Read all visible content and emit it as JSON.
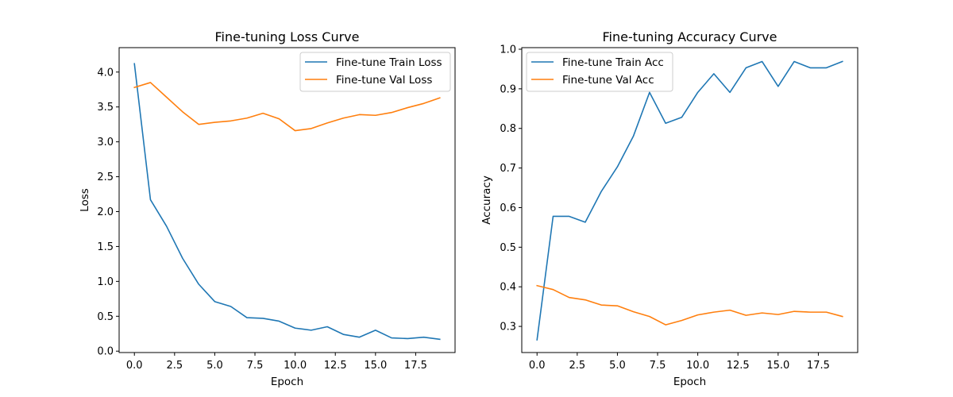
{
  "chart_data": [
    {
      "type": "line",
      "title": "Fine-tuning Loss Curve",
      "xlabel": "Epoch",
      "ylabel": "Loss",
      "x": [
        0,
        1,
        2,
        3,
        4,
        5,
        6,
        7,
        8,
        9,
        10,
        11,
        12,
        13,
        14,
        15,
        16,
        17,
        18,
        19
      ],
      "xlim": [
        -0.95,
        19.95
      ],
      "ylim": [
        -0.02,
        4.35
      ],
      "xticks": [
        0.0,
        2.5,
        5.0,
        7.5,
        10.0,
        12.5,
        15.0,
        17.5
      ],
      "xtick_labels": [
        "0.0",
        "2.5",
        "5.0",
        "7.5",
        "10.0",
        "12.5",
        "15.0",
        "17.5"
      ],
      "yticks": [
        0.0,
        0.5,
        1.0,
        1.5,
        2.0,
        2.5,
        3.0,
        3.5,
        4.0
      ],
      "ytick_labels": [
        "0.0",
        "0.5",
        "1.0",
        "1.5",
        "2.0",
        "2.5",
        "3.0",
        "3.5",
        "4.0"
      ],
      "legend_position": "upper-right",
      "series": [
        {
          "name": "Fine-tune Train Loss",
          "color": "#1f77b4",
          "values": [
            4.12,
            2.17,
            1.79,
            1.33,
            0.96,
            0.71,
            0.64,
            0.48,
            0.47,
            0.43,
            0.33,
            0.3,
            0.35,
            0.24,
            0.2,
            0.3,
            0.19,
            0.18,
            0.2,
            0.17
          ]
        },
        {
          "name": "Fine-tune Val Loss",
          "color": "#ff7f0e",
          "values": [
            3.78,
            3.85,
            3.64,
            3.43,
            3.25,
            3.28,
            3.3,
            3.34,
            3.41,
            3.33,
            3.16,
            3.19,
            3.27,
            3.34,
            3.39,
            3.38,
            3.42,
            3.49,
            3.55,
            3.63
          ]
        }
      ]
    },
    {
      "type": "line",
      "title": "Fine-tuning Accuracy Curve",
      "xlabel": "Epoch",
      "ylabel": "Accuracy",
      "x": [
        0,
        1,
        2,
        3,
        4,
        5,
        6,
        7,
        8,
        9,
        10,
        11,
        12,
        13,
        14,
        15,
        16,
        17,
        18,
        19
      ],
      "xlim": [
        -0.95,
        19.95
      ],
      "ylim": [
        0.234,
        1.004
      ],
      "xticks": [
        0.0,
        2.5,
        5.0,
        7.5,
        10.0,
        12.5,
        15.0,
        17.5
      ],
      "xtick_labels": [
        "0.0",
        "2.5",
        "5.0",
        "7.5",
        "10.0",
        "12.5",
        "15.0",
        "17.5"
      ],
      "yticks": [
        0.3,
        0.4,
        0.5,
        0.6,
        0.7,
        0.8,
        0.9,
        1.0
      ],
      "ytick_labels": [
        "0.3",
        "0.4",
        "0.5",
        "0.6",
        "0.7",
        "0.8",
        "0.9",
        "1.0"
      ],
      "legend_position": "upper-left",
      "series": [
        {
          "name": "Fine-tune Train Acc",
          "color": "#1f77b4",
          "values": [
            0.266,
            0.578,
            0.578,
            0.563,
            0.641,
            0.703,
            0.781,
            0.891,
            0.813,
            0.828,
            0.891,
            0.938,
            0.891,
            0.953,
            0.969,
            0.906,
            0.969,
            0.953,
            0.953,
            0.969
          ]
        },
        {
          "name": "Fine-tune Val Acc",
          "color": "#ff7f0e",
          "values": [
            0.403,
            0.393,
            0.373,
            0.367,
            0.354,
            0.352,
            0.337,
            0.325,
            0.304,
            0.315,
            0.329,
            0.336,
            0.341,
            0.328,
            0.334,
            0.33,
            0.338,
            0.336,
            0.336,
            0.325
          ]
        }
      ]
    }
  ]
}
